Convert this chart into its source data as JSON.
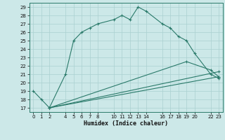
{
  "xlabel": "Humidex (Indice chaleur)",
  "bg_color": "#cce8e8",
  "grid_color": "#aad0d0",
  "line_color": "#2a7a6a",
  "xlim": [
    -0.5,
    23.5
  ],
  "ylim": [
    16.5,
    29.5
  ],
  "yticks": [
    17,
    18,
    19,
    20,
    21,
    22,
    23,
    24,
    25,
    26,
    27,
    28,
    29
  ],
  "xticks": [
    0,
    1,
    2,
    4,
    5,
    6,
    7,
    8,
    10,
    11,
    12,
    13,
    14,
    16,
    17,
    18,
    19,
    20,
    22,
    23
  ],
  "curve1_x": [
    0,
    1,
    2,
    4,
    5,
    6,
    7,
    8,
    10,
    11,
    12,
    13,
    14,
    16,
    17,
    18,
    19,
    20,
    22,
    23
  ],
  "curve1_y": [
    19,
    18,
    17,
    21,
    25,
    26,
    26.5,
    27,
    27.5,
    28,
    27.5,
    29,
    28.5,
    27,
    26.5,
    25.5,
    25,
    23.5,
    21,
    20.5
  ],
  "curve2_x": [
    2,
    23
  ],
  "curve2_y": [
    17,
    20.7
  ],
  "curve3_x": [
    2,
    23
  ],
  "curve3_y": [
    17,
    21.3
  ],
  "curve4_x": [
    2,
    19,
    22,
    23
  ],
  "curve4_y": [
    17,
    22.5,
    21.5,
    20.7
  ]
}
